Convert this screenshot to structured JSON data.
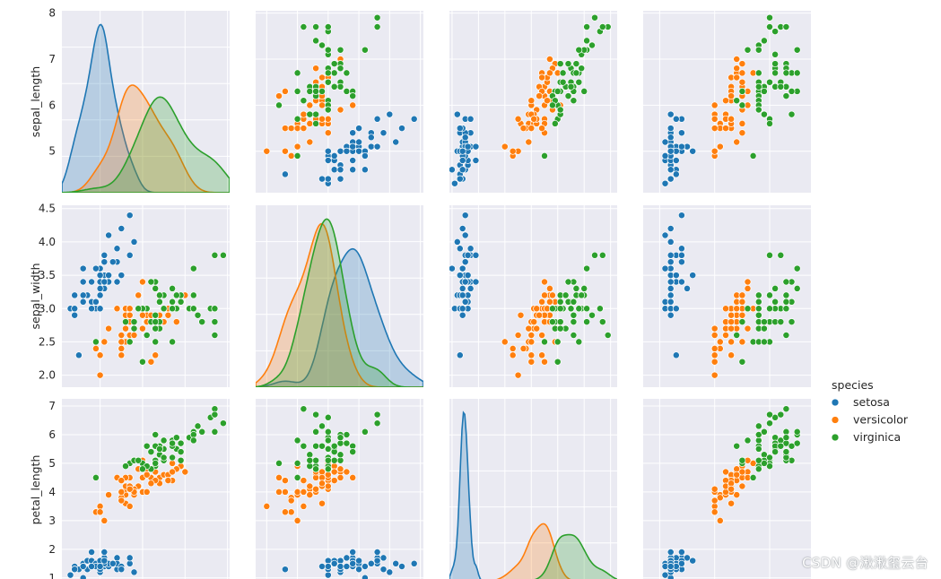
{
  "colors": {
    "panel_bg": "#eaeaf2",
    "grid": "#ffffff",
    "text": "#262626",
    "setosa": "#1f77b4",
    "versicolor": "#ff7f0e",
    "virginica": "#2ca02c"
  },
  "watermark": "CSDN @湫湫玺云台",
  "chart_data": {
    "type": "scatter",
    "chart_kind": "pairplot",
    "grid": true,
    "diagonal": "kde",
    "variables": [
      {
        "name": "sepal_length",
        "label": "sepal_length",
        "range": [
          4.1,
          8.05
        ],
        "ticks": [
          5,
          6,
          7,
          8
        ]
      },
      {
        "name": "sepal_width",
        "label": "sepal_width",
        "range": [
          1.82,
          4.55
        ],
        "ticks": [
          2.0,
          2.5,
          3.0,
          3.5,
          4.0,
          4.5
        ]
      },
      {
        "name": "petal_length",
        "label": "petal_length",
        "range": [
          0.9,
          7.25
        ],
        "ticks": [
          1,
          2,
          3,
          4,
          5,
          6,
          7
        ]
      },
      {
        "name": "petal_width",
        "label": "",
        "range": [
          -0.3,
          2.75
        ],
        "ticks": []
      }
    ],
    "visible_rows": [
      "sepal_length",
      "sepal_width",
      "petal_length"
    ],
    "legend": {
      "title": "species",
      "placement": "right",
      "entries": [
        "setosa",
        "versicolor",
        "virginica"
      ]
    },
    "series": [
      {
        "name": "setosa",
        "sepal_length": [
          5.1,
          4.9,
          4.7,
          4.6,
          5.0,
          5.4,
          4.6,
          5.0,
          4.4,
          4.9,
          5.4,
          4.8,
          4.8,
          4.3,
          5.8,
          5.7,
          5.4,
          5.1,
          5.7,
          5.1,
          5.4,
          5.1,
          4.6,
          5.1,
          4.8,
          5.0,
          5.0,
          5.2,
          5.2,
          4.7,
          4.8,
          5.4,
          5.2,
          5.5,
          4.9,
          5.0,
          5.5,
          4.9,
          4.4,
          5.1,
          5.0,
          4.5,
          4.4,
          5.0,
          5.1,
          4.8,
          5.1,
          4.6,
          5.3,
          5.0
        ],
        "sepal_width": [
          3.5,
          3.0,
          3.2,
          3.1,
          3.6,
          3.9,
          3.4,
          3.4,
          2.9,
          3.1,
          3.7,
          3.4,
          3.0,
          3.0,
          4.0,
          4.4,
          3.9,
          3.5,
          3.8,
          3.8,
          3.4,
          3.7,
          3.6,
          3.3,
          3.4,
          3.0,
          3.4,
          3.5,
          3.4,
          3.2,
          3.1,
          3.4,
          4.1,
          4.2,
          3.1,
          3.2,
          3.5,
          3.6,
          3.0,
          3.4,
          3.5,
          2.3,
          3.2,
          3.5,
          3.8,
          3.0,
          3.8,
          3.2,
          3.7,
          3.3
        ],
        "petal_length": [
          1.4,
          1.4,
          1.3,
          1.5,
          1.4,
          1.7,
          1.4,
          1.5,
          1.4,
          1.5,
          1.5,
          1.6,
          1.4,
          1.1,
          1.2,
          1.5,
          1.3,
          1.4,
          1.7,
          1.5,
          1.7,
          1.5,
          1.0,
          1.7,
          1.9,
          1.6,
          1.6,
          1.5,
          1.4,
          1.6,
          1.6,
          1.5,
          1.5,
          1.4,
          1.5,
          1.2,
          1.3,
          1.4,
          1.3,
          1.5,
          1.3,
          1.3,
          1.3,
          1.6,
          1.9,
          1.4,
          1.6,
          1.4,
          1.5,
          1.4
        ],
        "petal_width": [
          0.2,
          0.2,
          0.2,
          0.2,
          0.2,
          0.4,
          0.3,
          0.2,
          0.2,
          0.1,
          0.2,
          0.2,
          0.1,
          0.1,
          0.2,
          0.4,
          0.4,
          0.3,
          0.3,
          0.3,
          0.2,
          0.4,
          0.2,
          0.5,
          0.2,
          0.2,
          0.4,
          0.2,
          0.2,
          0.2,
          0.2,
          0.4,
          0.1,
          0.2,
          0.2,
          0.2,
          0.2,
          0.1,
          0.2,
          0.2,
          0.3,
          0.3,
          0.2,
          0.6,
          0.4,
          0.3,
          0.2,
          0.2,
          0.2,
          0.2
        ]
      },
      {
        "name": "versicolor",
        "sepal_length": [
          7.0,
          6.4,
          6.9,
          5.5,
          6.5,
          5.7,
          6.3,
          4.9,
          6.6,
          5.2,
          5.0,
          5.9,
          6.0,
          6.1,
          5.6,
          6.7,
          5.6,
          5.8,
          6.2,
          5.6,
          5.9,
          6.1,
          6.3,
          6.1,
          6.4,
          6.6,
          6.8,
          6.7,
          6.0,
          5.7,
          5.5,
          5.5,
          5.8,
          6.0,
          5.4,
          6.0,
          6.7,
          6.3,
          5.6,
          5.5,
          5.5,
          6.1,
          5.8,
          5.0,
          5.6,
          5.7,
          5.7,
          6.2,
          5.1,
          5.7
        ],
        "sepal_width": [
          3.2,
          3.2,
          3.1,
          2.3,
          2.8,
          2.8,
          3.3,
          2.4,
          2.9,
          2.7,
          2.0,
          3.0,
          2.2,
          2.9,
          2.9,
          3.1,
          3.0,
          2.7,
          2.2,
          2.5,
          3.2,
          2.8,
          2.5,
          2.8,
          2.9,
          3.0,
          2.8,
          3.0,
          2.9,
          2.6,
          2.4,
          2.4,
          2.7,
          2.7,
          3.0,
          3.4,
          3.1,
          2.3,
          3.0,
          2.5,
          2.6,
          3.0,
          2.6,
          2.3,
          2.7,
          3.0,
          2.9,
          2.9,
          2.5,
          2.8
        ],
        "petal_length": [
          4.7,
          4.5,
          4.9,
          4.0,
          4.6,
          4.5,
          4.7,
          3.3,
          4.6,
          3.9,
          3.5,
          4.2,
          4.0,
          4.7,
          3.6,
          4.4,
          4.5,
          4.1,
          4.5,
          3.9,
          4.8,
          4.0,
          4.9,
          4.7,
          4.3,
          4.4,
          4.8,
          5.0,
          4.5,
          3.5,
          3.8,
          3.7,
          3.9,
          5.1,
          4.5,
          4.5,
          4.7,
          4.4,
          4.1,
          4.0,
          4.4,
          4.6,
          4.0,
          3.3,
          4.2,
          4.2,
          4.2,
          4.3,
          3.0,
          4.1
        ],
        "petal_width": [
          1.4,
          1.5,
          1.5,
          1.3,
          1.5,
          1.3,
          1.6,
          1.0,
          1.3,
          1.4,
          1.0,
          1.5,
          1.0,
          1.4,
          1.3,
          1.4,
          1.5,
          1.0,
          1.5,
          1.1,
          1.8,
          1.3,
          1.5,
          1.2,
          1.3,
          1.4,
          1.4,
          1.7,
          1.5,
          1.0,
          1.1,
          1.0,
          1.2,
          1.6,
          1.5,
          1.6,
          1.5,
          1.3,
          1.3,
          1.3,
          1.2,
          1.4,
          1.2,
          1.0,
          1.3,
          1.2,
          1.3,
          1.3,
          1.1,
          1.3
        ]
      },
      {
        "name": "virginica",
        "sepal_length": [
          6.3,
          5.8,
          7.1,
          6.3,
          6.5,
          7.6,
          4.9,
          7.3,
          6.7,
          7.2,
          6.5,
          6.4,
          6.8,
          5.7,
          5.8,
          6.4,
          6.5,
          7.7,
          7.7,
          6.0,
          6.9,
          5.6,
          7.7,
          6.3,
          6.7,
          7.2,
          6.2,
          6.1,
          6.4,
          7.2,
          7.4,
          7.9,
          6.4,
          6.3,
          6.1,
          7.7,
          6.3,
          6.4,
          6.0,
          6.9,
          6.7,
          6.9,
          5.8,
          6.8,
          6.7,
          6.7,
          6.3,
          6.5,
          6.2,
          5.9
        ],
        "sepal_width": [
          3.3,
          2.7,
          3.0,
          2.9,
          3.0,
          3.0,
          2.5,
          2.9,
          2.5,
          3.6,
          3.2,
          2.7,
          3.0,
          2.5,
          2.8,
          3.2,
          3.0,
          3.8,
          2.6,
          2.2,
          3.2,
          2.8,
          2.8,
          2.7,
          3.3,
          3.2,
          2.8,
          3.0,
          2.8,
          3.0,
          2.8,
          3.8,
          2.8,
          2.8,
          2.6,
          3.0,
          3.4,
          3.1,
          3.0,
          3.1,
          3.1,
          3.1,
          2.7,
          3.2,
          3.3,
          3.0,
          2.5,
          3.0,
          3.4,
          3.0
        ],
        "petal_length": [
          6.0,
          5.1,
          5.9,
          5.6,
          5.8,
          6.6,
          4.5,
          6.3,
          5.8,
          6.1,
          5.1,
          5.3,
          5.5,
          5.0,
          5.1,
          5.3,
          5.5,
          6.7,
          6.9,
          5.0,
          5.7,
          4.9,
          6.7,
          4.9,
          5.7,
          6.0,
          4.8,
          4.9,
          5.6,
          5.8,
          6.1,
          6.4,
          5.6,
          5.1,
          5.6,
          6.1,
          5.6,
          5.5,
          4.8,
          5.4,
          5.6,
          5.1,
          5.1,
          5.9,
          5.7,
          5.2,
          5.0,
          5.2,
          5.4,
          5.1
        ],
        "petal_width": [
          2.5,
          1.9,
          2.1,
          1.8,
          2.2,
          2.1,
          1.7,
          1.8,
          1.8,
          2.5,
          2.0,
          1.9,
          2.1,
          2.0,
          2.4,
          2.3,
          1.8,
          2.2,
          2.3,
          1.5,
          2.3,
          2.0,
          2.0,
          1.8,
          2.1,
          1.8,
          1.8,
          1.8,
          2.1,
          1.6,
          1.9,
          2.0,
          2.2,
          1.5,
          1.4,
          2.3,
          2.4,
          1.8,
          1.8,
          2.1,
          2.4,
          2.3,
          1.9,
          2.3,
          2.5,
          2.3,
          1.9,
          2.0,
          2.3,
          1.8
        ]
      }
    ]
  }
}
